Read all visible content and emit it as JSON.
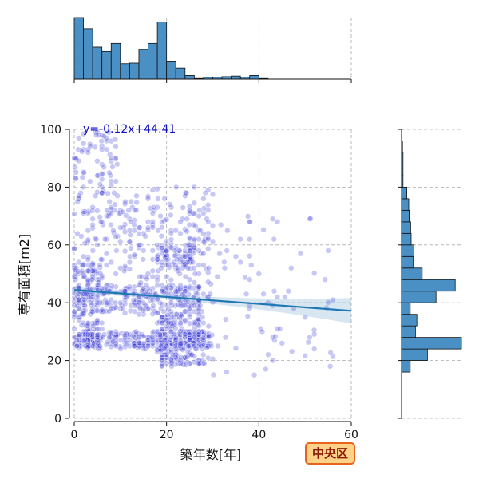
{
  "chart_data": {
    "type": "scatter",
    "xlabel": "築年数[年]",
    "ylabel": "専有面積[m2]",
    "xlim": [
      0,
      60
    ],
    "ylim": [
      0,
      100
    ],
    "xticks": [
      0,
      20,
      40,
      60
    ],
    "yticks": [
      0,
      20,
      40,
      60,
      80,
      100
    ],
    "grid": true,
    "regression": {
      "equation": "y=-0.12x+44.41",
      "slope": -0.12,
      "intercept": 44.41
    },
    "annotation": "中央区",
    "colors": {
      "points": "#3a3ad8",
      "line": "#1f77b4",
      "hist": "#4a90c4",
      "badge_bg": "#ffd28a",
      "badge_border": "#e8641c"
    },
    "x_hist": {
      "bin_width": 2,
      "bins_start": 0,
      "counts": [
        100,
        82,
        52,
        45,
        58,
        25,
        26,
        48,
        58,
        93,
        28,
        18,
        6,
        1,
        3,
        3,
        4,
        5,
        3,
        6,
        1,
        0,
        0,
        0,
        0,
        0,
        0,
        0,
        0,
        0
      ]
    },
    "y_hist": {
      "bin_width": 4,
      "bins_start": 0,
      "counts": [
        0,
        0,
        1,
        0,
        18,
        54,
        125,
        29,
        32,
        18,
        72,
        112,
        43,
        24,
        26,
        20,
        19,
        16,
        15,
        11,
        3,
        3,
        3,
        2,
        1
      ]
    },
    "scatter_clusters": [
      {
        "x": [
          2.5,
          3.5
        ],
        "y": [
          25,
          30
        ],
        "weight": 9
      },
      {
        "x": [
          0,
          6
        ],
        "y": [
          24,
          56
        ],
        "weight": 12
      },
      {
        "x": [
          0,
          30
        ],
        "y": [
          24,
          30
        ],
        "weight": 22
      },
      {
        "x": [
          0,
          28
        ],
        "y": [
          36,
          46
        ],
        "weight": 20
      },
      {
        "x": [
          18,
          28
        ],
        "y": [
          18,
          36
        ],
        "weight": 18
      },
      {
        "x": [
          14,
          30
        ],
        "y": [
          40,
          80
        ],
        "weight": 14
      },
      {
        "x": [
          0,
          14
        ],
        "y": [
          50,
          80
        ],
        "weight": 10
      },
      {
        "x": [
          0,
          10
        ],
        "y": [
          80,
          100
        ],
        "weight": 5
      },
      {
        "x": [
          28,
          56
        ],
        "y": [
          15,
          70
        ],
        "weight": 7
      },
      {
        "x": [
          18,
          26
        ],
        "y": [
          52,
          60
        ],
        "weight": 6
      }
    ]
  }
}
